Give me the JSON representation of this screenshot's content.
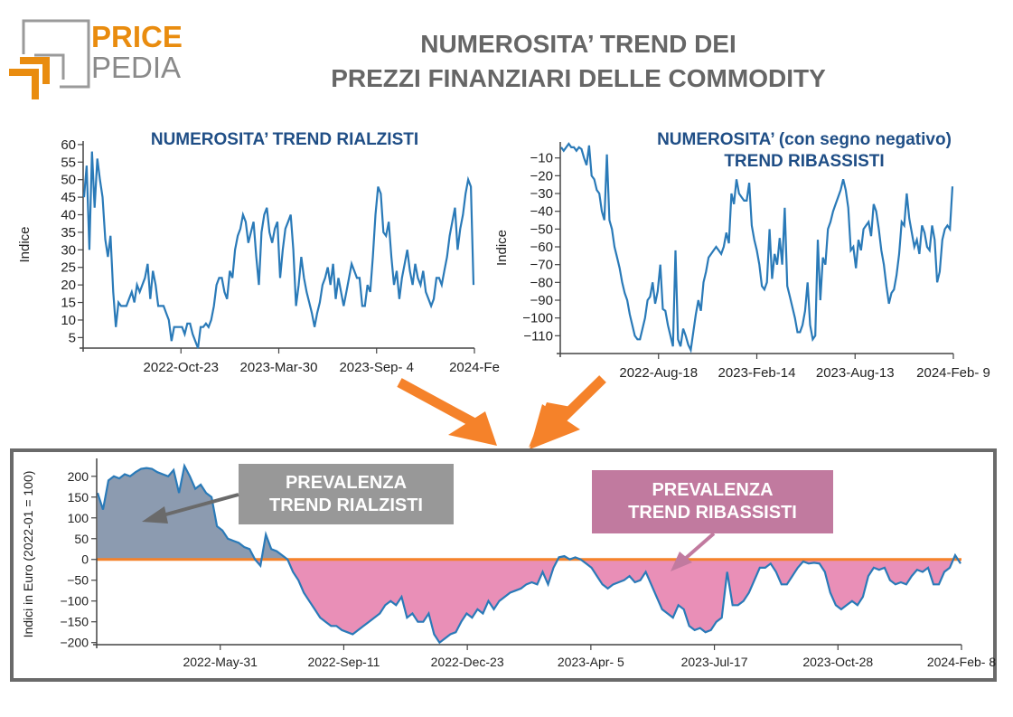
{
  "logo": {
    "line1": "PRICE",
    "line2": "PEDIA",
    "color_primary": "#e98c0f",
    "color_secondary": "#8a8a8a"
  },
  "header": {
    "title_line1": "NUMEROSITA’ TREND DEI",
    "title_line2": "PREZZI FINANZIARI DELLE COMMODITY"
  },
  "annotations": {
    "bullish_label_line1": "PREVALENZA",
    "bullish_label_line2": "TREND RIALZISTI",
    "bearish_label_line1": "PREVALENZA",
    "bearish_label_line2": "TREND RIBASSISTI",
    "arrow_color": "#f5822a"
  },
  "chart_data": [
    {
      "type": "line",
      "title": "NUMEROSITA’ TREND RIALZISTI",
      "xlabel": "",
      "ylabel": "Indice",
      "ylim": [
        2,
        61
      ],
      "yticks": [
        5,
        10,
        15,
        20,
        25,
        30,
        35,
        40,
        45,
        50,
        55,
        60
      ],
      "xticks": [
        "2022-Oct-23",
        "2023-Mar-30",
        "2023-Sep- 4",
        "2024-Fe"
      ],
      "color": "#2a7ab8",
      "series": [
        {
          "name": "Indice",
          "values": [
            45,
            54,
            30,
            58,
            42,
            56,
            50,
            45,
            33,
            28,
            34,
            18,
            8,
            15,
            14,
            14,
            14,
            16,
            18,
            15,
            20,
            18,
            20,
            22,
            26,
            16,
            24,
            20,
            14,
            14,
            14,
            12,
            10,
            4,
            8,
            8,
            8,
            8,
            6,
            9,
            9,
            6,
            4,
            2,
            8,
            8,
            9,
            8,
            10,
            14,
            20,
            22,
            22,
            18,
            16,
            24,
            22,
            30,
            34,
            36,
            40,
            38,
            32,
            35,
            38,
            28,
            20,
            35,
            40,
            42,
            35,
            32,
            36,
            38,
            22,
            30,
            36,
            38,
            40,
            30,
            14,
            20,
            28,
            22,
            18,
            15,
            12,
            8,
            12,
            15,
            20,
            22,
            25,
            20,
            26,
            16,
            22,
            18,
            14,
            18,
            22,
            26,
            24,
            22,
            22,
            14,
            14,
            20,
            18,
            28,
            40,
            48,
            46,
            35,
            34,
            38,
            28,
            20,
            24,
            16,
            22,
            26,
            30,
            24,
            20,
            26,
            22,
            20,
            24,
            18,
            16,
            14,
            16,
            22,
            22,
            20,
            24,
            28,
            34,
            38,
            42,
            30,
            36,
            40,
            46,
            50,
            48,
            20
          ]
        }
      ]
    },
    {
      "type": "line",
      "title": "NUMEROSITA’ (con segno negativo) TREND RIBASSISTI",
      "xlabel": "",
      "ylabel": "Indice",
      "ylim": [
        -120,
        -1
      ],
      "yticks": [
        -10,
        -20,
        -30,
        -40,
        -50,
        -60,
        -70,
        -80,
        -90,
        -100,
        -110
      ],
      "xticks": [
        "2022-Aug-18",
        "2023-Feb-14",
        "2023-Aug-13",
        "2024-Feb- 9"
      ],
      "color": "#2a7ab8",
      "series": [
        {
          "name": "Indice",
          "values": [
            -4,
            -6,
            -4,
            -2,
            -4,
            -4,
            -6,
            -4,
            -5,
            -10,
            -14,
            -3,
            -20,
            -22,
            -28,
            -30,
            -40,
            -45,
            -8,
            -45,
            -50,
            -60,
            -66,
            -72,
            -80,
            -86,
            -90,
            -98,
            -104,
            -110,
            -112,
            -112,
            -106,
            -100,
            -90,
            -88,
            -80,
            -92,
            -85,
            -70,
            -95,
            -96,
            -104,
            -110,
            -116,
            -62,
            -112,
            -116,
            -106,
            -110,
            -115,
            -118,
            -108,
            -98,
            -90,
            -96,
            -80,
            -74,
            -66,
            -64,
            -62,
            -60,
            -62,
            -64,
            -60,
            -52,
            -58,
            -30,
            -36,
            -22,
            -30,
            -32,
            -34,
            -34,
            -24,
            -48,
            -56,
            -62,
            -70,
            -82,
            -84,
            -80,
            -50,
            -78,
            -64,
            -70,
            -55,
            -70,
            -38,
            -82,
            -88,
            -94,
            -100,
            -108,
            -108,
            -104,
            -96,
            -80,
            -104,
            -112,
            -110,
            -56,
            -90,
            -66,
            -70,
            -50,
            -46,
            -40,
            -36,
            -32,
            -28,
            -22,
            -28,
            -38,
            -62,
            -60,
            -72,
            -56,
            -62,
            -50,
            -48,
            -46,
            -54,
            -36,
            -40,
            -50,
            -62,
            -70,
            -82,
            -92,
            -86,
            -84,
            -76,
            -64,
            -46,
            -48,
            -30,
            -44,
            -52,
            -60,
            -56,
            -64,
            -48,
            -52,
            -60,
            -62,
            -48,
            -56,
            -80,
            -74,
            -56,
            -50,
            -48,
            -50,
            -26
          ]
        }
      ]
    },
    {
      "type": "area",
      "title": "",
      "xlabel": "",
      "ylabel": "Indici in Euro (2022-01 = 100)",
      "ylim": [
        -205,
        230
      ],
      "yticks": [
        200,
        150,
        100,
        50,
        0,
        -50,
        -100,
        -150,
        -200
      ],
      "xticks": [
        "2022-May-31",
        "2022-Sep-11",
        "2022-Dec-23",
        "2023-Apr- 5",
        "2023-Jul-17",
        "2023-Oct-28",
        "2024-Feb- 8"
      ],
      "baseline": 0,
      "colors": {
        "line": "#2a7ab8",
        "positive_fill": "#8c9bb0",
        "negative_fill": "#e98fb7",
        "zero_line": "#f5822a"
      },
      "series": [
        {
          "name": "Indici in Euro",
          "values": [
            160,
            120,
            190,
            200,
            195,
            205,
            200,
            210,
            218,
            220,
            218,
            210,
            205,
            200,
            215,
            160,
            225,
            200,
            170,
            180,
            160,
            150,
            80,
            70,
            50,
            45,
            40,
            30,
            25,
            0,
            -15,
            60,
            25,
            20,
            10,
            0,
            -30,
            -50,
            -80,
            -100,
            -120,
            -140,
            -150,
            -160,
            -160,
            -170,
            -175,
            -180,
            -170,
            -160,
            -150,
            -140,
            -130,
            -110,
            -100,
            -110,
            -90,
            -140,
            -130,
            -150,
            -150,
            -130,
            -180,
            -200,
            -190,
            -180,
            -175,
            -150,
            -130,
            -140,
            -120,
            -130,
            -100,
            -120,
            -100,
            -90,
            -80,
            -75,
            -70,
            -60,
            -55,
            -60,
            -30,
            -60,
            -20,
            5,
            8,
            0,
            5,
            0,
            -10,
            -20,
            -40,
            -60,
            -70,
            -60,
            -55,
            -50,
            -40,
            -55,
            -50,
            -30,
            -60,
            -90,
            -120,
            -130,
            -140,
            -110,
            -120,
            -160,
            -170,
            -165,
            -175,
            -170,
            -150,
            -140,
            -30,
            -110,
            -110,
            -100,
            -80,
            -50,
            -20,
            -20,
            -10,
            -30,
            -60,
            -60,
            -40,
            -20,
            -5,
            -10,
            -8,
            -10,
            -30,
            -80,
            -110,
            -120,
            -110,
            -100,
            -110,
            -90,
            -40,
            -20,
            -25,
            -20,
            -50,
            -60,
            -55,
            -60,
            -40,
            -25,
            -30,
            -20,
            -60,
            -60,
            -30,
            -20,
            10,
            -10
          ]
        }
      ]
    }
  ]
}
